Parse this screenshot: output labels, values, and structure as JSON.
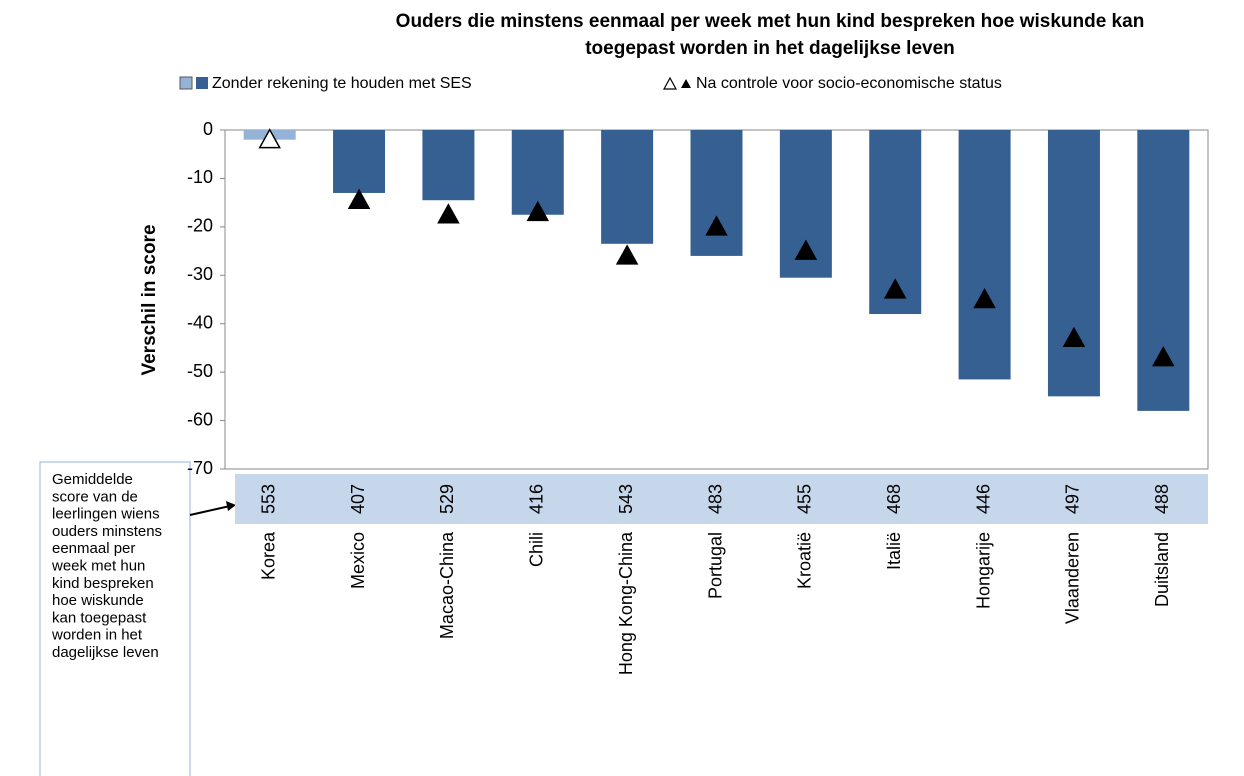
{
  "chart_data": {
    "type": "bar",
    "title": [
      "Ouders die minstens eenmaal per week met hun kind bespreken hoe wiskunde kan",
      "toegepast worden in het dagelijkse leven"
    ],
    "y_label": "Verschil in score",
    "categories": [
      "Korea",
      "Mexico",
      "Macao-China",
      "Chili",
      "Hong Kong-China",
      "Portugal",
      "Kroatië",
      "Italië",
      "Hongarije",
      "Vlaanderen",
      "Duitsland"
    ],
    "scores": [
      553,
      407,
      529,
      416,
      543,
      483,
      455,
      468,
      446,
      497,
      488
    ],
    "series": [
      {
        "name": "Zonder rekening te houden met SES",
        "color": "#376092",
        "light_color": "#95b3d7",
        "values": [
          -2,
          -13,
          -14.5,
          -17.5,
          -23.5,
          -26,
          -30.5,
          -38,
          -51.5,
          -55,
          -58
        ],
        "significant": [
          false,
          true,
          true,
          true,
          true,
          true,
          true,
          true,
          true,
          true,
          true
        ]
      },
      {
        "name": "Na controle voor socio-economische status",
        "color": "#000000",
        "values": [
          -2,
          -14.5,
          -17.5,
          -17,
          -26,
          -20,
          -25,
          -33,
          -35,
          -43,
          -47
        ],
        "significant": [
          false,
          true,
          true,
          true,
          true,
          true,
          true,
          true,
          true,
          true,
          true
        ]
      }
    ],
    "ylim": [
      -70,
      0
    ],
    "yticks": [
      0,
      -10,
      -20,
      -30,
      -40,
      -50,
      -60,
      -70
    ],
    "note": [
      "Gemiddelde",
      "score van de",
      "leerlingen wiens",
      "ouders minstens",
      "eenmaal per",
      "week met hun",
      "kind bespreken",
      "hoe wiskunde",
      "kan toegepast",
      "worden in het",
      "dagelijkse leven"
    ]
  }
}
